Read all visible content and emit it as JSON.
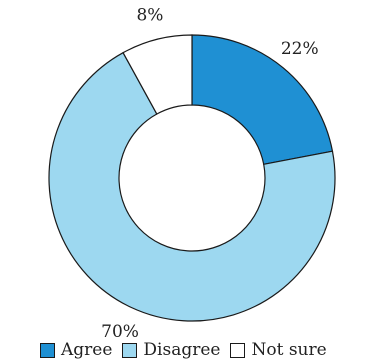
{
  "chart_data": {
    "type": "pie",
    "donut": true,
    "categories": [
      "Agree",
      "Disagree",
      "Not sure"
    ],
    "values": [
      22,
      70,
      8
    ],
    "labels": [
      "22%",
      "70%",
      "8%"
    ],
    "colors": [
      "#1f90d3",
      "#9dd8f0",
      "#ffffff"
    ],
    "title": "",
    "legend_position": "bottom"
  }
}
